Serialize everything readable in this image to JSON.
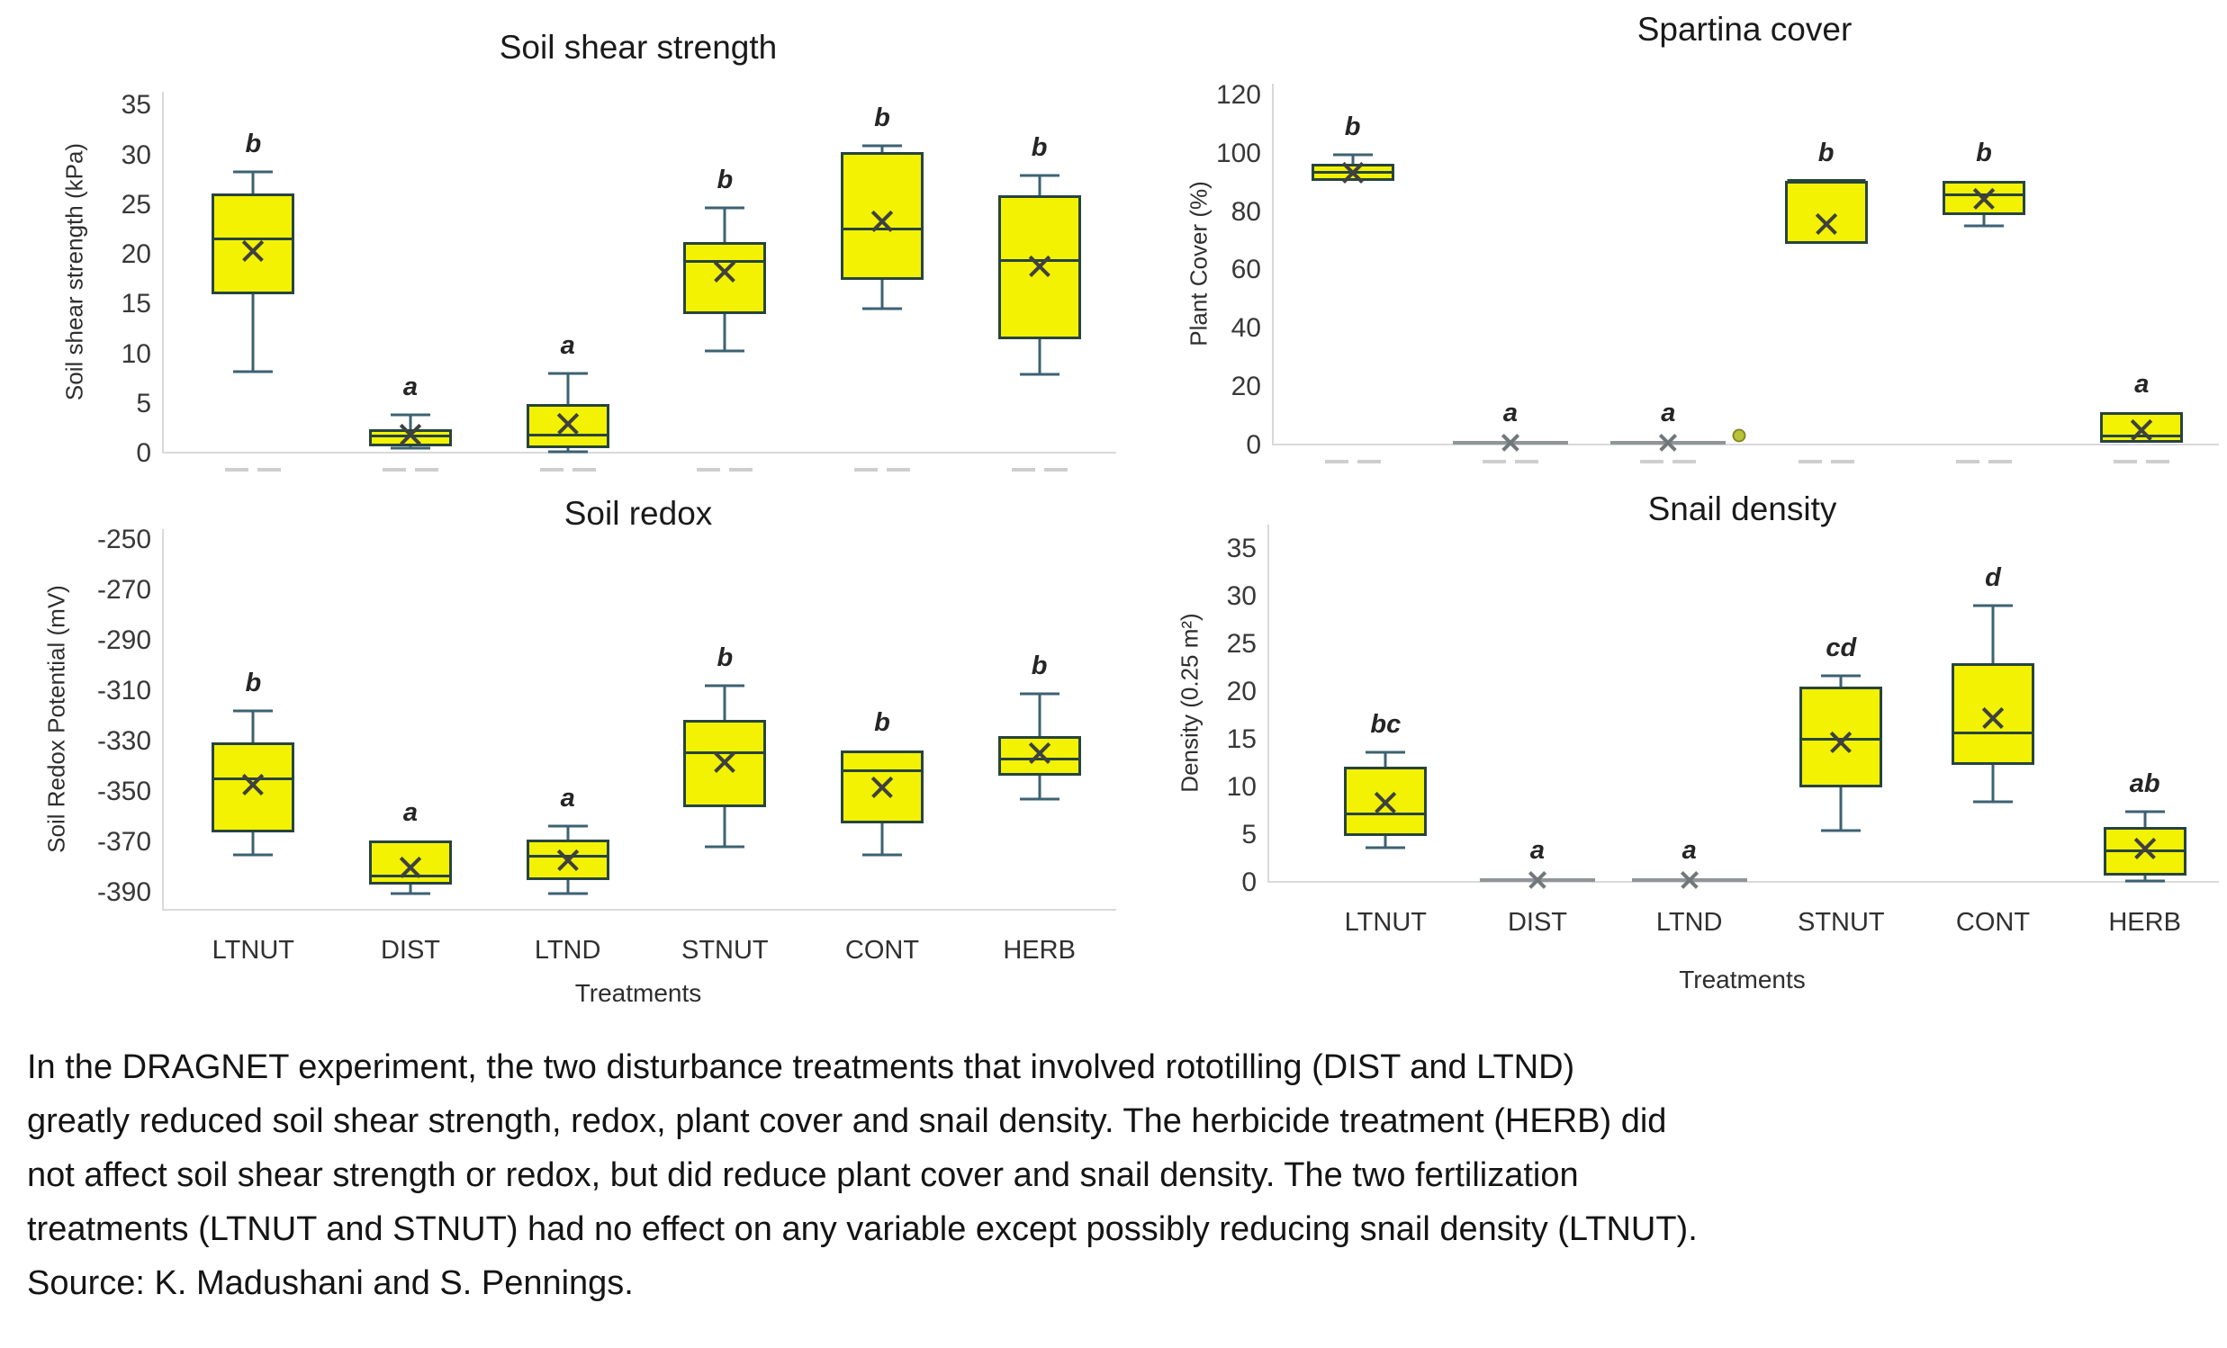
{
  "page": {
    "background": "#ffffff"
  },
  "colors": {
    "box_fill": "#f2f202",
    "box_border": "#27443f",
    "whisker": "#3c6272",
    "median": "#27443f",
    "mean_marker": "#3f4040",
    "flat_line": "#909698",
    "flat_marker": "#70787a",
    "sig_letter": "#252525",
    "axis_line": "#d9d9d9",
    "outlier_fill": "#b9c435",
    "faded_dash": "#c6c6c6",
    "caption_text": "#141414"
  },
  "caption": {
    "lines": [
      "In the DRAGNET experiment, the two disturbance treatments that involved rototilling (DIST and LTND)",
      "greatly reduced soil shear strength, redox, plant cover and snail density. The herbicide treatment (HERB) did",
      "not affect soil shear strength or redox, but did reduce plant cover and snail density. The two fertilization",
      "treatments (LTNUT and STNUT) had no effect on any variable except possibly reducing snail density (LTNUT).",
      "Source: K. Madushani and S. Pennings."
    ]
  },
  "chart_data": [
    {
      "type": "box",
      "title": "Soil shear strength",
      "ylabel": "Soil shear strength (kPa)",
      "xlabel": "",
      "x_tick_labels_visible": false,
      "categories": [
        "LTNUT",
        "DIST",
        "LTND",
        "STNUT",
        "CONT",
        "HERB"
      ],
      "ylim": [
        0,
        36.4
      ],
      "yticks": [
        35,
        30,
        25,
        20,
        15,
        10,
        5,
        0
      ],
      "pad_left": 12,
      "boxes": [
        {
          "category": "LTNUT",
          "letter": "b",
          "whislo": 8.2,
          "q1": 16.0,
          "med": 21.6,
          "mean": 20.4,
          "q3": 26.2,
          "whishi": 28.3
        },
        {
          "category": "DIST",
          "letter": "a",
          "whislo": 0.5,
          "q1": 0.7,
          "med": 1.8,
          "mean": 1.9,
          "q3": 2.4,
          "whishi": 3.9
        },
        {
          "category": "LTND",
          "letter": "a",
          "whislo": 0.2,
          "q1": 0.5,
          "med": 1.9,
          "mean": 3.0,
          "q3": 5.0,
          "whishi": 8.1
        },
        {
          "category": "STNUT",
          "letter": "b",
          "whislo": 10.3,
          "q1": 14.0,
          "med": 19.3,
          "mean": 18.3,
          "q3": 21.3,
          "whishi": 24.7
        },
        {
          "category": "CONT",
          "letter": "b",
          "whislo": 14.6,
          "q1": 17.5,
          "med": 22.6,
          "mean": 23.4,
          "q3": 30.3,
          "whishi": 31.0
        },
        {
          "category": "HERB",
          "letter": "b",
          "whislo": 8.0,
          "q1": 11.5,
          "med": 19.4,
          "mean": 18.9,
          "q3": 26.0,
          "whishi": 28.0
        }
      ],
      "outliers": []
    },
    {
      "type": "box",
      "title": "Spartina cover",
      "ylabel": "Plant Cover (%)",
      "xlabel": "",
      "x_tick_labels_visible": false,
      "categories": [
        "LTNUT",
        "DIST",
        "LTND",
        "STNUT",
        "CONT",
        "HERB"
      ],
      "ylim": [
        0,
        124
      ],
      "yticks": [
        120,
        100,
        80,
        60,
        40,
        20,
        0
      ],
      "pad_left": 0,
      "boxes": [
        {
          "category": "LTNUT",
          "letter": "b",
          "whislo": 90.8,
          "q1": 90.8,
          "med": 93.5,
          "mean": 93.5,
          "q3": 96.6,
          "whishi": 99.7
        },
        {
          "category": "DIST",
          "letter": "a",
          "flat": 1.0
        },
        {
          "category": "LTND",
          "letter": "a",
          "flat": 1.0
        },
        {
          "category": "STNUT",
          "letter": "b",
          "whislo": 69.1,
          "q1": 69.1,
          "med": 90.8,
          "mean": 75.9,
          "q3": 90.8,
          "whishi": 90.8
        },
        {
          "category": "CONT",
          "letter": "b",
          "whislo": 75.4,
          "q1": 79.0,
          "med": 85.9,
          "mean": 84.7,
          "q3": 90.8,
          "whishi": 90.8
        },
        {
          "category": "HERB",
          "letter": "a",
          "whislo": 0.9,
          "q1": 0.9,
          "med": 3.1,
          "mean": 5.2,
          "q3": 11.4,
          "whishi": 11.4
        }
      ],
      "outliers": [
        {
          "category_index": 3,
          "value": 3.4,
          "x_offset": -0.55
        }
      ]
    },
    {
      "type": "box",
      "title": "Soil redox",
      "ylabel": "Soil Redox Potential (mV)",
      "xlabel": "Treatments",
      "x_tick_labels_visible": true,
      "categories": [
        "LTNUT",
        "DIST",
        "LTND",
        "STNUT",
        "CONT",
        "HERB"
      ],
      "ylim": [
        -397.2,
        -245.7
      ],
      "yticks": [
        -250,
        -270,
        -290,
        -310,
        -330,
        -350,
        -370,
        -390
      ],
      "pad_left": 12,
      "boxes": [
        {
          "category": "LTNUT",
          "letter": "b",
          "whislo": -375.0,
          "q1": -366.0,
          "med": -345.0,
          "mean": -347.0,
          "q3": -330.5,
          "whishi": -318.0
        },
        {
          "category": "DIST",
          "letter": "a",
          "whislo": -390.5,
          "q1": -387.0,
          "med": -383.5,
          "mean": -380.0,
          "q3": -369.5,
          "whishi": -369.5
        },
        {
          "category": "LTND",
          "letter": "a",
          "whislo": -390.5,
          "q1": -385.0,
          "med": -375.5,
          "mean": -377.0,
          "q3": -369.0,
          "whishi": -363.5
        },
        {
          "category": "STNUT",
          "letter": "b",
          "whislo": -372.0,
          "q1": -356.0,
          "med": -334.5,
          "mean": -338.0,
          "q3": -321.5,
          "whishi": -308.0
        },
        {
          "category": "CONT",
          "letter": "b",
          "whislo": -375.0,
          "q1": -362.5,
          "med": -341.5,
          "mean": -348.0,
          "q3": -333.5,
          "whishi": -333.5
        },
        {
          "category": "HERB",
          "letter": "b",
          "whislo": -353.0,
          "q1": -343.5,
          "med": -337.0,
          "mean": -334.5,
          "q3": -328.0,
          "whishi": -311.0
        }
      ],
      "outliers": []
    },
    {
      "type": "box",
      "title": "Snail density",
      "ylabel": "Density (0.25 m²)",
      "xlabel": "Treatments",
      "x_tick_labels_visible": true,
      "categories": [
        "LTNUT",
        "DIST",
        "LTND",
        "STNUT",
        "CONT",
        "HERB"
      ],
      "ylim": [
        0,
        37.5
      ],
      "yticks": [
        35,
        30,
        25,
        20,
        15,
        10,
        5,
        0
      ],
      "pad_left": 45,
      "boxes": [
        {
          "category": "LTNUT",
          "letter": "bc",
          "whislo": 3.7,
          "q1": 4.9,
          "med": 7.2,
          "mean": 8.4,
          "q3": 12.2,
          "whishi": 13.7
        },
        {
          "category": "DIST",
          "letter": "a",
          "flat": 0.3
        },
        {
          "category": "LTND",
          "letter": "a",
          "flat": 0.3
        },
        {
          "category": "STNUT",
          "letter": "cd",
          "whislo": 5.5,
          "q1": 10.0,
          "med": 15.0,
          "mean": 14.7,
          "q3": 20.5,
          "whishi": 21.7
        },
        {
          "category": "CONT",
          "letter": "d",
          "whislo": 8.5,
          "q1": 12.3,
          "med": 15.7,
          "mean": 17.3,
          "q3": 23.0,
          "whishi": 29.0
        },
        {
          "category": "HERB",
          "letter": "ab",
          "whislo": 0.2,
          "q1": 0.8,
          "med": 3.3,
          "mean": 3.6,
          "q3": 5.8,
          "whishi": 7.4
        }
      ],
      "outliers": []
    }
  ]
}
